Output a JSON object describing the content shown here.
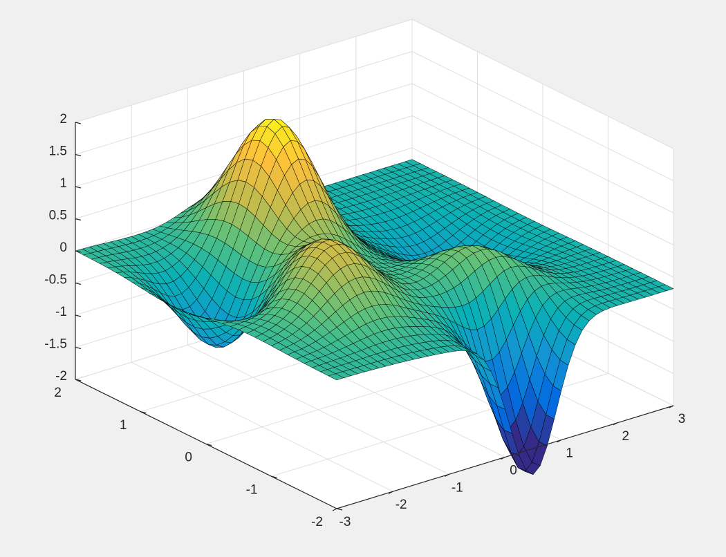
{
  "chart_data": {
    "type": "surface",
    "title": "",
    "xlabel": "",
    "ylabel": "",
    "zlabel": "",
    "xlim": [
      -3,
      3
    ],
    "ylim": [
      -2,
      2
    ],
    "zlim": [
      -2,
      2
    ],
    "x_ticks": [
      -3,
      -2,
      -1,
      0,
      1,
      2,
      3
    ],
    "y_ticks": [
      -2,
      -1,
      0,
      1,
      2
    ],
    "z_ticks": [
      -2,
      -1.5,
      -1,
      -0.5,
      0,
      0.5,
      1,
      1.5,
      2
    ],
    "x_tick_labels": [
      "-3",
      "-2",
      "-1",
      "0",
      "1",
      "2",
      "3"
    ],
    "y_tick_labels": [
      "-2",
      "-1",
      "0",
      "1",
      "2"
    ],
    "z_tick_labels": [
      "-2",
      "-1.5",
      "-1",
      "-0.5",
      "0",
      "0.5",
      "1",
      "1.5",
      "2"
    ],
    "grid": true,
    "colormap": "parula",
    "mesh": {
      "nx": 49,
      "ny": 33
    },
    "features": [
      {
        "kind": "peak",
        "x": -0.6,
        "y": 1.1,
        "z": 1.95
      },
      {
        "kind": "peak",
        "x": -1.5,
        "y": -0.5,
        "z": 1.15
      },
      {
        "kind": "trough",
        "x": 0.5,
        "y": -1.9,
        "z": -1.95
      },
      {
        "kind": "trough",
        "x": -2.2,
        "y": 0.5,
        "z": -0.8
      },
      {
        "kind": "plateau",
        "x": 2.0,
        "y": 1.5,
        "z": -0.2
      }
    ],
    "colors": {
      "background": "#f0f0f0",
      "axes_background": "#ffffff",
      "grid": "#dfdfdf",
      "axis": "#262626",
      "edge": "#000000"
    }
  }
}
